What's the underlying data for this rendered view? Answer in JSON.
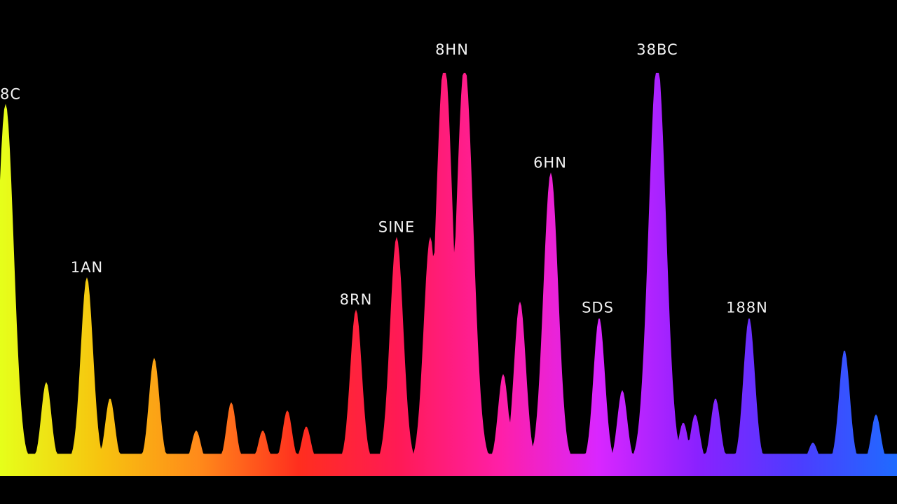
{
  "chart_data": {
    "type": "area",
    "title": "",
    "xlabel": "",
    "ylabel": "",
    "gradient": [
      "#e6ff1a",
      "#f7c40f",
      "#ff8a1a",
      "#ff2e1e",
      "#ff1a55",
      "#ff1fa6",
      "#d926ff",
      "#8a21ff",
      "#4d3cff",
      "#1f6bff"
    ],
    "peak_labels": [
      {
        "id": "peak-label-1",
        "text": "8C",
        "x": 0,
        "y": 0.89
      },
      {
        "id": "peak-label-2",
        "text": "1AN",
        "x": 124,
        "y": 0.46
      },
      {
        "id": "peak-label-3",
        "text": "8RN",
        "x": 508,
        "y": 0.38
      },
      {
        "id": "peak-label-4",
        "text": "SINE",
        "x": 566,
        "y": 0.56
      },
      {
        "id": "peak-label-5",
        "text": "8HN",
        "x": 645,
        "y": 1.0
      },
      {
        "id": "peak-label-6",
        "text": "6HN",
        "x": 785,
        "y": 0.72
      },
      {
        "id": "peak-label-7",
        "text": "SDS",
        "x": 853,
        "y": 0.36
      },
      {
        "id": "peak-label-8",
        "text": "38BC",
        "x": 938,
        "y": 1.0
      },
      {
        "id": "peak-label-9",
        "text": "188N",
        "x": 1066,
        "y": 0.36
      }
    ],
    "peaks": [
      {
        "x": 8,
        "y": 0.89
      },
      {
        "x": 66,
        "y": 0.2
      },
      {
        "x": 124,
        "y": 0.46
      },
      {
        "x": 157,
        "y": 0.16
      },
      {
        "x": 220,
        "y": 0.26
      },
      {
        "x": 280,
        "y": 0.08
      },
      {
        "x": 330,
        "y": 0.15
      },
      {
        "x": 375,
        "y": 0.08
      },
      {
        "x": 410,
        "y": 0.13
      },
      {
        "x": 437,
        "y": 0.09
      },
      {
        "x": 508,
        "y": 0.38
      },
      {
        "x": 566,
        "y": 0.56
      },
      {
        "x": 614,
        "y": 0.56
      },
      {
        "x": 634,
        "y": 1.0
      },
      {
        "x": 651,
        "y": 0.34
      },
      {
        "x": 663,
        "y": 0.99
      },
      {
        "x": 718,
        "y": 0.22
      },
      {
        "x": 742,
        "y": 0.4
      },
      {
        "x": 786,
        "y": 0.72
      },
      {
        "x": 855,
        "y": 0.36
      },
      {
        "x": 888,
        "y": 0.18
      },
      {
        "x": 938,
        "y": 1.0
      },
      {
        "x": 975,
        "y": 0.1
      },
      {
        "x": 992,
        "y": 0.12
      },
      {
        "x": 1021,
        "y": 0.16
      },
      {
        "x": 1069,
        "y": 0.36
      },
      {
        "x": 1160,
        "y": 0.05
      },
      {
        "x": 1205,
        "y": 0.28
      },
      {
        "x": 1250,
        "y": 0.12
      }
    ],
    "xlim": [
      0,
      1280
    ],
    "ylim": [
      0,
      1
    ]
  }
}
